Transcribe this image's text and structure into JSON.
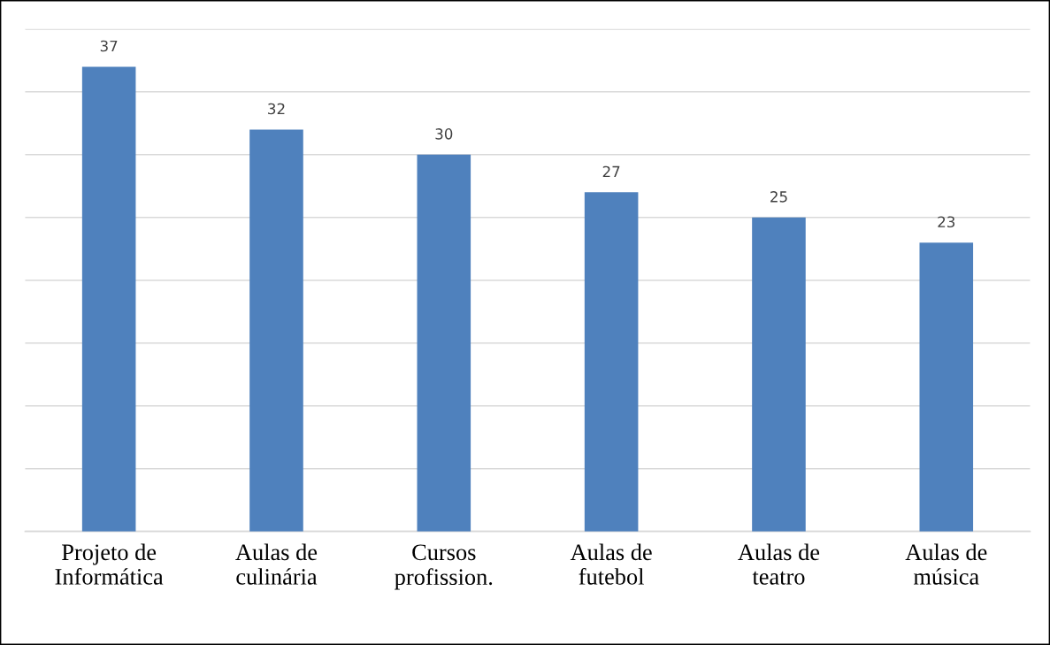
{
  "chart_data": {
    "type": "bar",
    "categories": [
      "Projeto de\nInformática",
      "Aulas de\nculinária",
      "Cursos\nprofission.",
      "Aulas de\nfutebol",
      "Aulas de\nteatro",
      "Aulas de\nmúsica"
    ],
    "values": [
      37,
      32,
      30,
      27,
      25,
      23
    ],
    "color": "#4f81bd",
    "ylim": [
      0,
      40
    ],
    "yticks": [
      {
        "value": 0,
        "label": null
      },
      {
        "value": 5,
        "label": null
      },
      {
        "value": 10,
        "label": null
      },
      {
        "value": 15,
        "label": null
      },
      {
        "value": 20,
        "label": null
      },
      {
        "value": 25,
        "label": null
      },
      {
        "value": 30,
        "label": null
      },
      {
        "value": 35,
        "label": null
      },
      {
        "value": 40,
        "label": null
      }
    ],
    "grid": "y",
    "data_labels": true,
    "tick_labels": "x"
  }
}
